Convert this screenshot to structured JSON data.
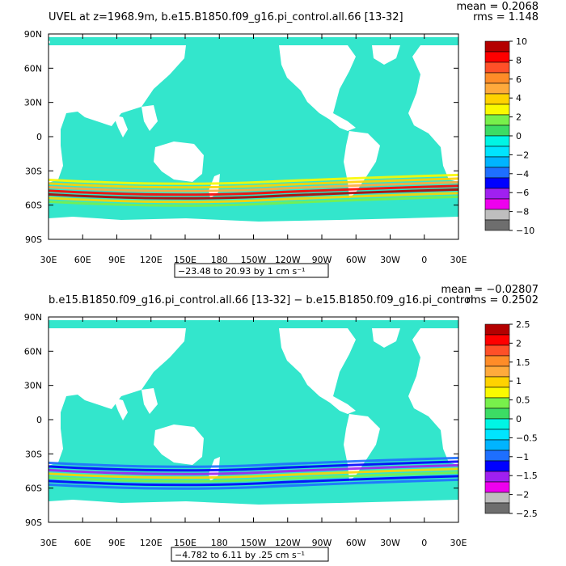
{
  "colors": {
    "ocean": "#33e6cc",
    "land": "#ffffff",
    "scale": [
      "#6e6e6e",
      "#bebebe",
      "#ee00ee",
      "#a020f0",
      "#0000ff",
      "#1e6fff",
      "#00b4ff",
      "#00e4ff",
      "#00f5e4",
      "#3cdc64",
      "#78f04b",
      "#fafa00",
      "#ffd200",
      "#ffaa3c",
      "#ff8c28",
      "#ff5028",
      "#ff0000",
      "#b40000"
    ]
  },
  "chart_data": [
    {
      "type": "heatmap",
      "title": "UVEL at z=1968.9m, b.e15.B1850.f09_g16.pi_control.all.66 [13-32]",
      "stats": {
        "mean": "mean = 0.2068",
        "rms": "rms = 1.148"
      },
      "x_tick_labels": [
        "30E",
        "60E",
        "90E",
        "120E",
        "150E",
        "180",
        "150W",
        "120W",
        "90W",
        "60W",
        "30W",
        "0",
        "30E"
      ],
      "y_tick_labels": [
        "90N",
        "60N",
        "30N",
        "0",
        "30S",
        "60S",
        "90S"
      ],
      "xlim": [
        30,
        390
      ],
      "ylim": [
        -90,
        90
      ],
      "range_label": "−23.48 to 20.93 by 1 cm s⁻¹",
      "colorbar_labels": [
        "10",
        "8",
        "6",
        "4",
        "2",
        "0",
        "−2",
        "−4",
        "−6",
        "−8",
        "−10"
      ],
      "colorbar_levels": 18
    },
    {
      "type": "heatmap",
      "title": "b.e15.B1850.f09_g16.pi_control.all.66 [13-32] − b.e15.B1850.f09_g16.pi_control",
      "stats": {
        "mean": "mean = −0.02807",
        "rms": "rms = 0.2502"
      },
      "x_tick_labels": [
        "30E",
        "60E",
        "90E",
        "120E",
        "150E",
        "180",
        "150W",
        "120W",
        "90W",
        "60W",
        "30W",
        "0",
        "30E"
      ],
      "y_tick_labels": [
        "90N",
        "60N",
        "30N",
        "0",
        "30S",
        "60S",
        "90S"
      ],
      "xlim": [
        30,
        390
      ],
      "ylim": [
        -90,
        90
      ],
      "range_label": "−4.782 to 6.11 by .25 cm s⁻¹",
      "colorbar_labels": [
        "2.5",
        "2",
        "1.5",
        "1",
        "0.5",
        "0",
        "−0.5",
        "−1",
        "−1.5",
        "−2",
        "−2.5"
      ],
      "colorbar_levels": 18
    }
  ]
}
